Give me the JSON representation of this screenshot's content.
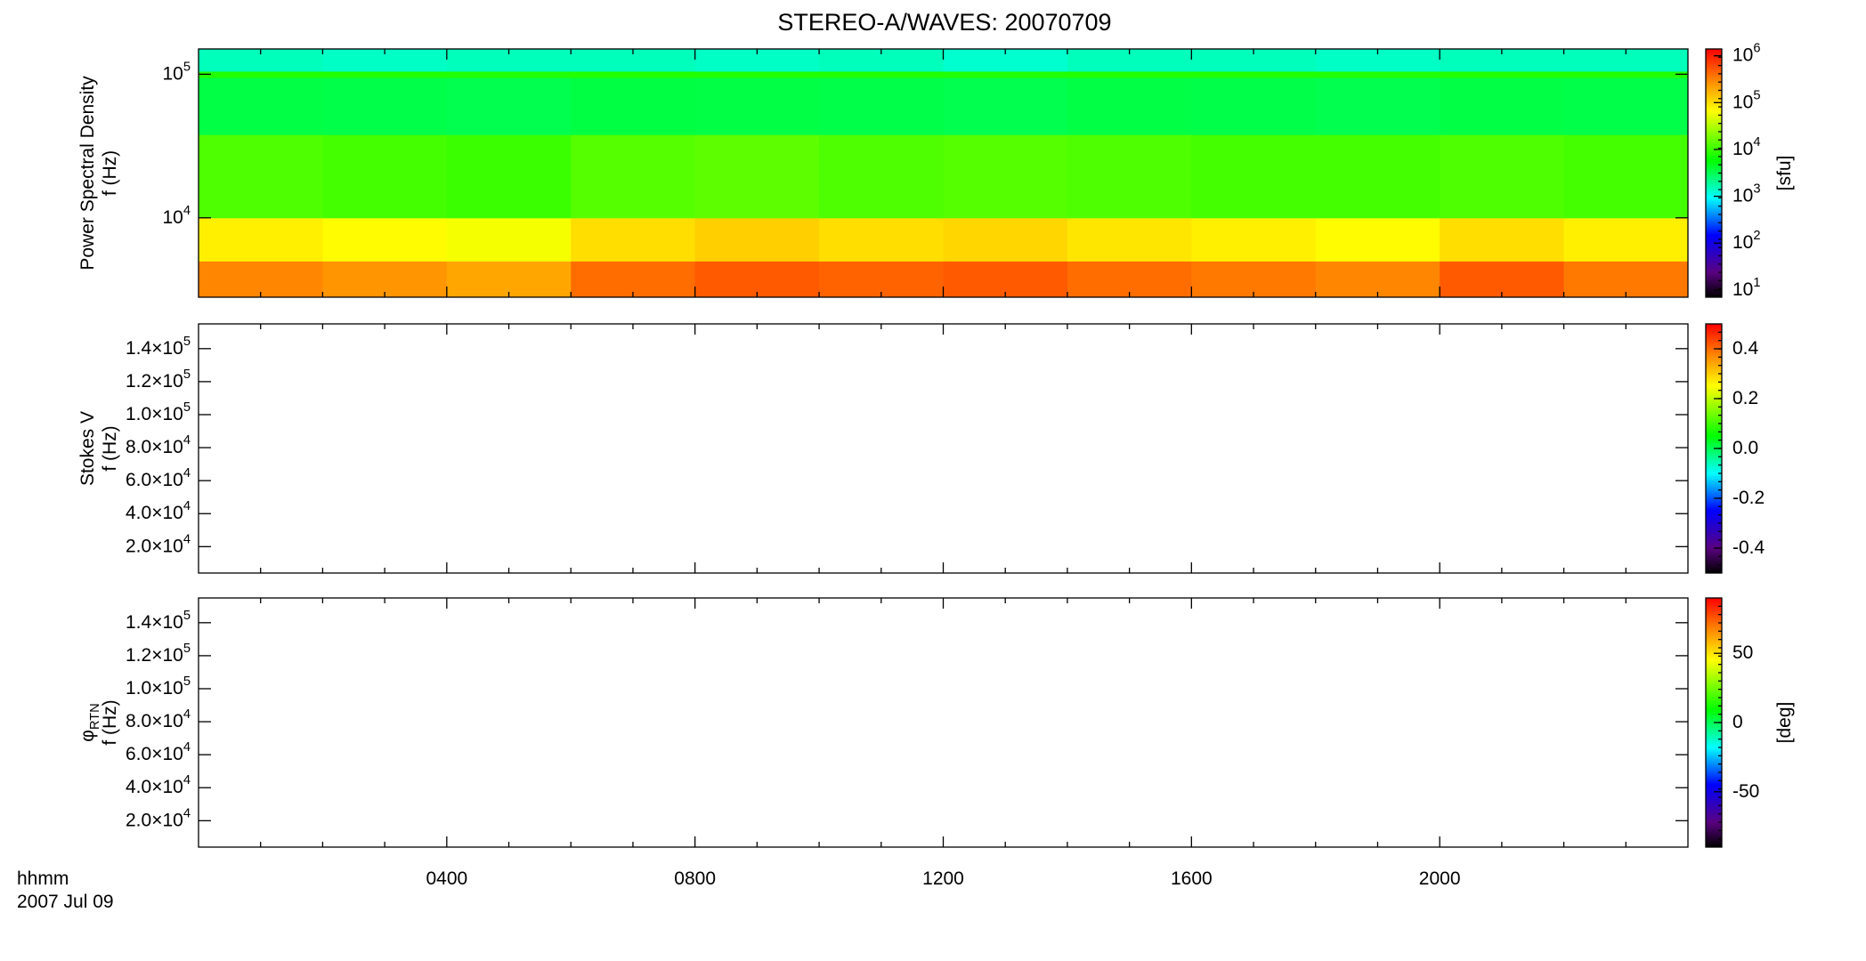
{
  "chart_data": [
    {
      "type": "heatmap",
      "title": "STEREO-A/WAVES: 20070709",
      "ylabel": [
        "Power Spectral Density",
        "f (Hz)"
      ],
      "yscale": "log",
      "ylim": [
        2800,
        150000
      ],
      "yticks": [
        {
          "value": 10000,
          "label": "10^4"
        },
        {
          "value": 100000,
          "label": "10^5"
        }
      ],
      "xlim": [
        0,
        24
      ],
      "time_bins": [
        0,
        2,
        4,
        6,
        8,
        10,
        12,
        14,
        16,
        18,
        20,
        22,
        24
      ],
      "freq_bins": [
        2800,
        5000,
        10000,
        38000,
        95000,
        105000,
        150000
      ],
      "z": [
        [
          300000,
          250000,
          200000,
          400000,
          500000,
          450000,
          500000,
          400000,
          350000,
          300000,
          500000,
          350000
        ],
        [
          80000,
          70000,
          60000,
          100000,
          120000,
          100000,
          110000,
          90000,
          80000,
          70000,
          100000,
          80000
        ],
        [
          12000,
          11000,
          10000,
          13000,
          14000,
          12000,
          13000,
          12000,
          11000,
          11000,
          12000,
          11000
        ],
        [
          3500,
          3400,
          3300,
          3600,
          3500,
          3400,
          3300,
          3500,
          3400,
          3300,
          3500,
          3400
        ],
        [
          8000,
          8000,
          8000,
          8000,
          8000,
          8000,
          8000,
          8000,
          8000,
          8000,
          8000,
          8000
        ],
        [
          1500,
          1400,
          1500,
          1500,
          1400,
          1500,
          1300,
          1500,
          1500,
          1400,
          1500,
          1500
        ]
      ],
      "cscale": "log",
      "clim": [
        7,
        1400000
      ],
      "cticks": [
        {
          "value": 10,
          "label": "10^1"
        },
        {
          "value": 100,
          "label": "10^2"
        },
        {
          "value": 1000,
          "label": "10^3"
        },
        {
          "value": 10000,
          "label": "10^4"
        },
        {
          "value": 100000,
          "label": "10^5"
        },
        {
          "value": 1000000,
          "label": "10^6"
        }
      ],
      "clabel": "[sfu]"
    },
    {
      "type": "heatmap",
      "ylabel": [
        "Stokes V",
        "f (Hz)"
      ],
      "yscale": "linear",
      "ylim": [
        4000,
        155000
      ],
      "yticks": [
        {
          "value": 20000,
          "label": "2.0×10^4"
        },
        {
          "value": 40000,
          "label": "4.0×10^4"
        },
        {
          "value": 60000,
          "label": "6.0×10^4"
        },
        {
          "value": 80000,
          "label": "8.0×10^4"
        },
        {
          "value": 100000,
          "label": "1.0×10^5"
        },
        {
          "value": 120000,
          "label": "1.2×10^5"
        },
        {
          "value": 140000,
          "label": "1.4×10^5"
        }
      ],
      "xlim": [
        0,
        24
      ],
      "cscale": "linear",
      "clim": [
        -0.5,
        0.5
      ],
      "cticks": [
        -0.4,
        -0.2,
        {
          "value": 0,
          "label": "0.0"
        },
        0.2,
        0.4
      ]
    },
    {
      "type": "heatmap",
      "ylabel": [
        "φ_RTN",
        "f (Hz)"
      ],
      "yscale": "linear",
      "ylim": [
        4000,
        155000
      ],
      "yticks": [
        {
          "value": 20000,
          "label": "2.0×10^4"
        },
        {
          "value": 40000,
          "label": "4.0×10^4"
        },
        {
          "value": 60000,
          "label": "6.0×10^4"
        },
        {
          "value": 80000,
          "label": "8.0×10^4"
        },
        {
          "value": 100000,
          "label": "1.0×10^5"
        },
        {
          "value": 120000,
          "label": "1.2×10^5"
        },
        {
          "value": 140000,
          "label": "1.4×10^5"
        }
      ],
      "xlim": [
        0,
        24
      ],
      "xticks": [
        {
          "value": 4,
          "label": "0400"
        },
        {
          "value": 8,
          "label": "0800"
        },
        {
          "value": 12,
          "label": "1200"
        },
        {
          "value": 16,
          "label": "1600"
        },
        {
          "value": 20,
          "label": "2000"
        }
      ],
      "xlabel": [
        "hhmm",
        "2007 Jul 09"
      ],
      "cscale": "linear",
      "clim": [
        -90,
        90
      ],
      "cticks": [
        -50,
        0,
        50
      ],
      "clabel": "[deg]"
    }
  ]
}
